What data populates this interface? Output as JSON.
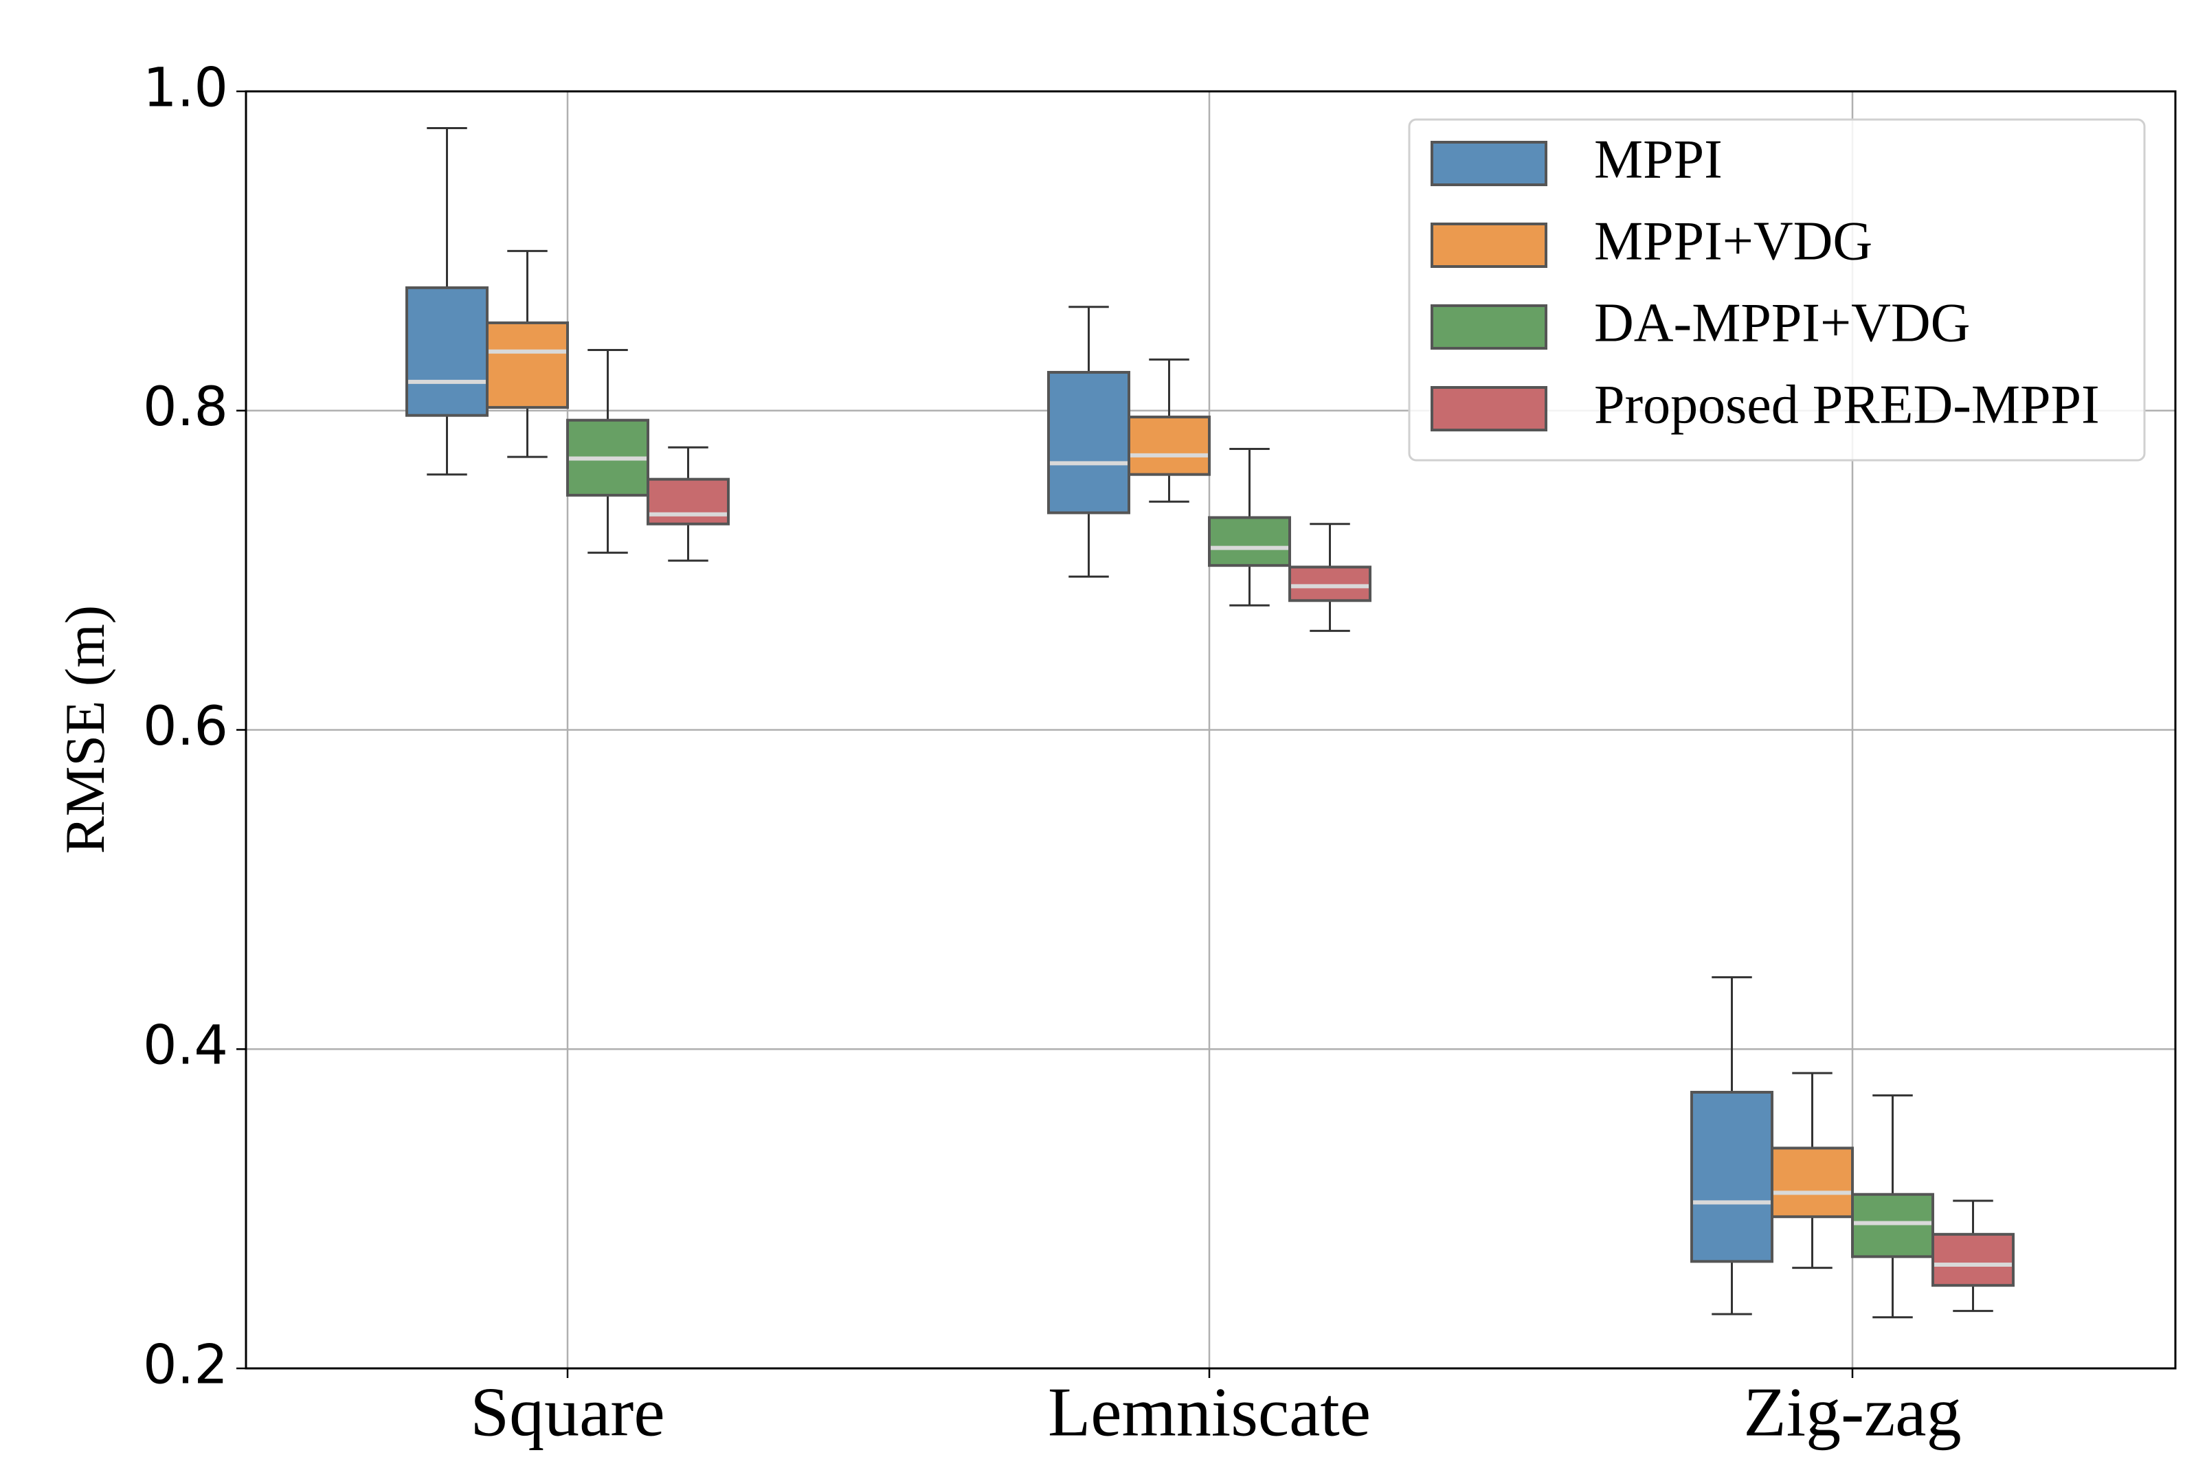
{
  "chart_data": {
    "type": "box",
    "ylabel": "RMSE (m)",
    "categories": [
      "Square",
      "Lemniscate",
      "Zig-zag"
    ],
    "ylim": [
      0.2,
      1.0
    ],
    "yticks": [
      0.2,
      0.4,
      0.6,
      0.8,
      {
        "value": 1.0,
        "label": "1.0"
      }
    ],
    "grid": true,
    "legend": "upper right",
    "series": [
      {
        "name": "MPPI",
        "color": "#5b8db8",
        "boxes": [
          {
            "whislo": 0.76,
            "q1": 0.797,
            "med": 0.818,
            "q3": 0.877,
            "whishi": 0.977
          },
          {
            "whislo": 0.696,
            "q1": 0.736,
            "med": 0.767,
            "q3": 0.824,
            "whishi": 0.865
          },
          {
            "whislo": 0.234,
            "q1": 0.267,
            "med": 0.304,
            "q3": 0.373,
            "whishi": 0.445
          }
        ]
      },
      {
        "name": "MPPI+VDG",
        "color": "#eb9a4f",
        "boxes": [
          {
            "whislo": 0.771,
            "q1": 0.802,
            "med": 0.837,
            "q3": 0.855,
            "whishi": 0.9
          },
          {
            "whislo": 0.743,
            "q1": 0.76,
            "med": 0.772,
            "q3": 0.796,
            "whishi": 0.832
          },
          {
            "whislo": 0.263,
            "q1": 0.295,
            "med": 0.31,
            "q3": 0.338,
            "whishi": 0.385
          }
        ]
      },
      {
        "name": "DA-MPPI+VDG",
        "color": "#67a064",
        "boxes": [
          {
            "whislo": 0.711,
            "q1": 0.747,
            "med": 0.77,
            "q3": 0.794,
            "whishi": 0.838
          },
          {
            "whislo": 0.678,
            "q1": 0.703,
            "med": 0.714,
            "q3": 0.733,
            "whishi": 0.776
          },
          {
            "whislo": 0.232,
            "q1": 0.27,
            "med": 0.291,
            "q3": 0.309,
            "whishi": 0.371
          }
        ]
      },
      {
        "name": "Proposed PRED-MPPI",
        "color": "#c76b6e",
        "boxes": [
          {
            "whislo": 0.706,
            "q1": 0.729,
            "med": 0.735,
            "q3": 0.757,
            "whishi": 0.777
          },
          {
            "whislo": 0.662,
            "q1": 0.681,
            "med": 0.69,
            "q3": 0.702,
            "whishi": 0.729
          },
          {
            "whislo": 0.236,
            "q1": 0.252,
            "med": 0.265,
            "q3": 0.284,
            "whishi": 0.305
          }
        ]
      }
    ]
  }
}
